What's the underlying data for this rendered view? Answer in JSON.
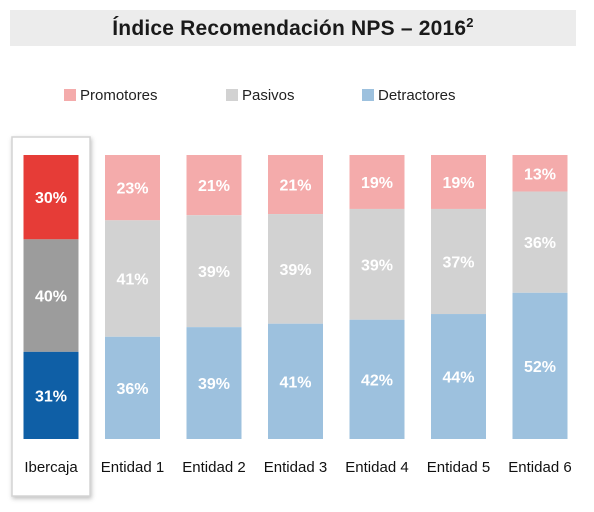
{
  "chart_data": {
    "type": "bar",
    "stacked": true,
    "normalized": true,
    "title": "Índice Recomendación NPS – 2016",
    "title_superscript": "2",
    "categories": [
      "Ibercaja",
      "Entidad 1",
      "Entidad 2",
      "Entidad 3",
      "Entidad 4",
      "Entidad 5",
      "Entidad 6"
    ],
    "highlighted_category": "Ibercaja",
    "series": [
      {
        "name": "Promotores",
        "values": [
          30,
          23,
          21,
          21,
          19,
          19,
          13
        ],
        "labels": [
          "30%",
          "23%",
          "21%",
          "21%",
          "19%",
          "19%",
          "13%"
        ],
        "color": "#f4abab",
        "highlight_color": "#e63c37"
      },
      {
        "name": "Pasivos",
        "values": [
          40,
          41,
          39,
          39,
          39,
          37,
          36
        ],
        "labels": [
          "40%",
          "41%",
          "39%",
          "39%",
          "39%",
          "37%",
          "36%"
        ],
        "color": "#d2d2d2",
        "highlight_color": "#9c9c9c"
      },
      {
        "name": "Detractores",
        "values": [
          31,
          36,
          39,
          41,
          42,
          44,
          52
        ],
        "labels": [
          "31%",
          "36%",
          "39%",
          "41%",
          "42%",
          "44%",
          "52%"
        ],
        "color": "#9dc1de",
        "highlight_color": "#0f5fa6"
      }
    ],
    "legend": {
      "placement": "top",
      "items": [
        {
          "label": "Promotores",
          "color": "#f4abab"
        },
        {
          "label": "Pasivos",
          "color": "#d2d2d2"
        },
        {
          "label": "Detractores",
          "color": "#9dc1de"
        }
      ]
    },
    "grid": false
  }
}
